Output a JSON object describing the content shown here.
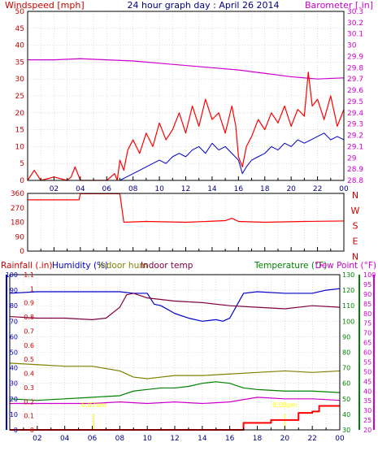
{
  "header": {
    "windspeed_label": "Windspeed [mph]",
    "title": "24 hour graph day : April 26 2014",
    "barometer_label": "Barometer [.in]"
  },
  "colors": {
    "frame": "#000000",
    "wind_gust": "#ff0000",
    "wind_avg": "#0000cc",
    "barometer": "#cc00cc",
    "rain": "#ff0000",
    "humidity": "#0000cc",
    "indoor_hum": "#808000",
    "indoor_temp": "#800040",
    "temperature": "#008000",
    "dewpoint": "#cc00cc",
    "title": "#000080",
    "pink_text": "#cc00cc",
    "red_text": "#cc0000",
    "sun_marker": "#ffff00"
  },
  "x_ticks": [
    "02",
    "04",
    "06",
    "08",
    "10",
    "12",
    "14",
    "16",
    "18",
    "20",
    "22",
    "00"
  ],
  "wind_panel": {
    "speed_axis": [
      0,
      5,
      10,
      15,
      20,
      25,
      30,
      35,
      40,
      45,
      50
    ],
    "baro_axis": [
      "28.8",
      "28.9",
      "29",
      "29.1",
      "29.2",
      "29.3",
      "29.4",
      "29.5",
      "29.6",
      "29.7",
      "29.8",
      "29.9",
      "30",
      "30.1",
      "30.2",
      "30.3"
    ]
  },
  "dir_panel": {
    "dir_axis": [
      0,
      90,
      180,
      270,
      360
    ],
    "compass_labels": [
      "N",
      "W",
      "S",
      "E",
      "N"
    ]
  },
  "lower_panel": {
    "rain_label": "Rainfall (.in)",
    "humidity_label": "Humidity (%)",
    "indoor_hum_label": "Indoor hum",
    "indoor_temp_label": "Indoor temp",
    "temperature_label": "Temperature (°F)",
    "dewpoint_label": "Dew Point (°F)",
    "humidity_axis": [
      0,
      10,
      20,
      30,
      40,
      50,
      60,
      70,
      80,
      90,
      100
    ],
    "rain_axis": [
      "0",
      "0.1",
      "0.2",
      "0.3",
      "0.4",
      "0.5",
      "0.6",
      "0.7",
      "0.8",
      "0.9",
      "1",
      "1.1"
    ],
    "temp_axis": [
      30,
      40,
      50,
      60,
      70,
      80,
      90,
      100,
      110,
      120,
      130
    ],
    "dew_axis": [
      20,
      25,
      30,
      35,
      40,
      45,
      50,
      55,
      60,
      65,
      70,
      75,
      80,
      85,
      90,
      95,
      100
    ],
    "sunrise": "6:07am",
    "sunset": "8:00pm"
  },
  "chart_data": {
    "type": "line",
    "x_range_hours": [
      0,
      24
    ],
    "panels": [
      {
        "name": "wind",
        "ylim": [
          0,
          50
        ],
        "y2lim": [
          28.8,
          30.3
        ],
        "series": [
          {
            "name": "Windspeed",
            "axis": "left",
            "x": [
              0,
              0.5,
              1,
              2,
              3,
              3.3,
              3.6,
              4,
              5,
              6,
              6.6,
              6.8,
              7,
              7.3,
              7.6,
              8,
              8.5,
              9,
              9.5,
              10,
              10.5,
              11,
              11.5,
              12,
              12.5,
              13,
              13.5,
              14,
              14.5,
              15,
              15.5,
              15.8,
              16,
              16.3,
              16.6,
              17,
              17.5,
              18,
              18.5,
              19,
              19.5,
              20,
              20.5,
              21,
              21.3,
              21.6,
              22,
              22.5,
              23,
              23.5,
              24
            ],
            "y": [
              0,
              3,
              0,
              1,
              0,
              1,
              4,
              0,
              0,
              0,
              2,
              0,
              6,
              3,
              9,
              12,
              8,
              14,
              10,
              17,
              12,
              15,
              20,
              14,
              22,
              16,
              24,
              18,
              20,
              14,
              22,
              16,
              7,
              4,
              10,
              13,
              18,
              15,
              20,
              17,
              22,
              16,
              21,
              19,
              32,
              22,
              24,
              18,
              25,
              16,
              21
            ]
          },
          {
            "name": "Wind average",
            "axis": "left",
            "x": [
              7,
              7.5,
              8,
              8.5,
              9,
              9.5,
              10,
              10.5,
              11,
              11.5,
              12,
              12.5,
              13,
              13.5,
              14,
              14.5,
              15,
              15.5,
              16,
              16.3,
              16.6,
              17,
              17.5,
              18,
              18.5,
              19,
              19.5,
              20,
              20.5,
              21,
              21.5,
              22,
              22.5,
              23,
              23.5,
              24
            ],
            "y": [
              0,
              1,
              2,
              3,
              4,
              5,
              6,
              5,
              7,
              8,
              7,
              9,
              10,
              8,
              11,
              9,
              10,
              8,
              6,
              2,
              4,
              6,
              7,
              8,
              10,
              9,
              11,
              10,
              12,
              11,
              12,
              13,
              14,
              12,
              13,
              12
            ]
          },
          {
            "name": "Barometer",
            "axis": "right",
            "x": [
              0,
              2,
              4,
              6,
              8,
              10,
              12,
              14,
              16,
              18,
              20,
              22,
              24
            ],
            "y": [
              29.87,
              29.87,
              29.88,
              29.87,
              29.86,
              29.84,
              29.82,
              29.8,
              29.78,
              29.75,
              29.72,
              29.7,
              29.71
            ]
          }
        ]
      },
      {
        "name": "wind_direction",
        "ylim": [
          0,
          360
        ],
        "series": [
          {
            "name": "Wind direction",
            "x": [
              0,
              3.9,
              4,
              7.0,
              7.3,
              9,
              12,
              15,
              15.5,
              16,
              18,
              21,
              24
            ],
            "y": [
              320,
              320,
              358,
              358,
              180,
              185,
              180,
              190,
              205,
              185,
              180,
              185,
              188
            ]
          }
        ]
      },
      {
        "name": "humidity_temperature_rain",
        "series": [
          {
            "name": "Humidity",
            "axis": "humidity",
            "x": [
              0,
              2,
              4,
              6,
              8,
              9,
              10,
              10.5,
              11,
              12,
              13,
              14,
              15,
              15.5,
              16,
              16.5,
              17,
              18,
              20,
              22,
              23,
              24
            ],
            "y": [
              88,
              89,
              89,
              89,
              89,
              88,
              88,
              81,
              80,
              75,
              72,
              70,
              71,
              70,
              72,
              80,
              88,
              89,
              88,
              88,
              90,
              91
            ]
          },
          {
            "name": "Indoor temp",
            "axis": "humidity",
            "x": [
              0,
              2,
              4,
              6,
              7,
              8,
              8.5,
              9,
              10,
              12,
              14,
              16,
              18,
              20,
              22,
              24
            ],
            "y": [
              73,
              72,
              72,
              71,
              72,
              79,
              87,
              88,
              85,
              83,
              82,
              80,
              79,
              78,
              80,
              79
            ]
          },
          {
            "name": "Indoor hum",
            "axis": "humidity",
            "x": [
              0,
              2,
              4,
              6,
              8,
              9,
              10,
              11,
              12,
              14,
              16,
              18,
              20,
              22,
              24
            ],
            "y": [
              43,
              42,
              41,
              41,
              38,
              34,
              33,
              34,
              35,
              35,
              36,
              37,
              38,
              37,
              38
            ]
          },
          {
            "name": "Temperature",
            "axis": "humidity",
            "x": [
              0,
              2,
              4,
              6,
              8,
              9,
              10,
              11,
              12,
              13,
              14,
              15,
              16,
              17,
              18,
              20,
              22,
              24
            ],
            "y": [
              20,
              19,
              20,
              21,
              22,
              25,
              26,
              27,
              27,
              28,
              30,
              31,
              30,
              27,
              26,
              25,
              25,
              24
            ]
          },
          {
            "name": "Dew Point",
            "axis": "humidity",
            "x": [
              0,
              2,
              4,
              6,
              8,
              10,
              12,
              14,
              16,
              18,
              20,
              22,
              24
            ],
            "y": [
              17,
              17,
              17,
              17,
              18,
              17,
              18,
              17,
              18,
              21,
              20,
              20,
              19
            ]
          },
          {
            "name": "Rainfall",
            "axis": "rain",
            "x": [
              0,
              16.5,
              17,
              18.5,
              19,
              20,
              21,
              22,
              22.5,
              23,
              24
            ],
            "y": [
              0,
              0,
              0.05,
              0.05,
              0.07,
              0.07,
              0.12,
              0.13,
              0.17,
              0.17,
              0.17
            ]
          }
        ]
      }
    ]
  }
}
